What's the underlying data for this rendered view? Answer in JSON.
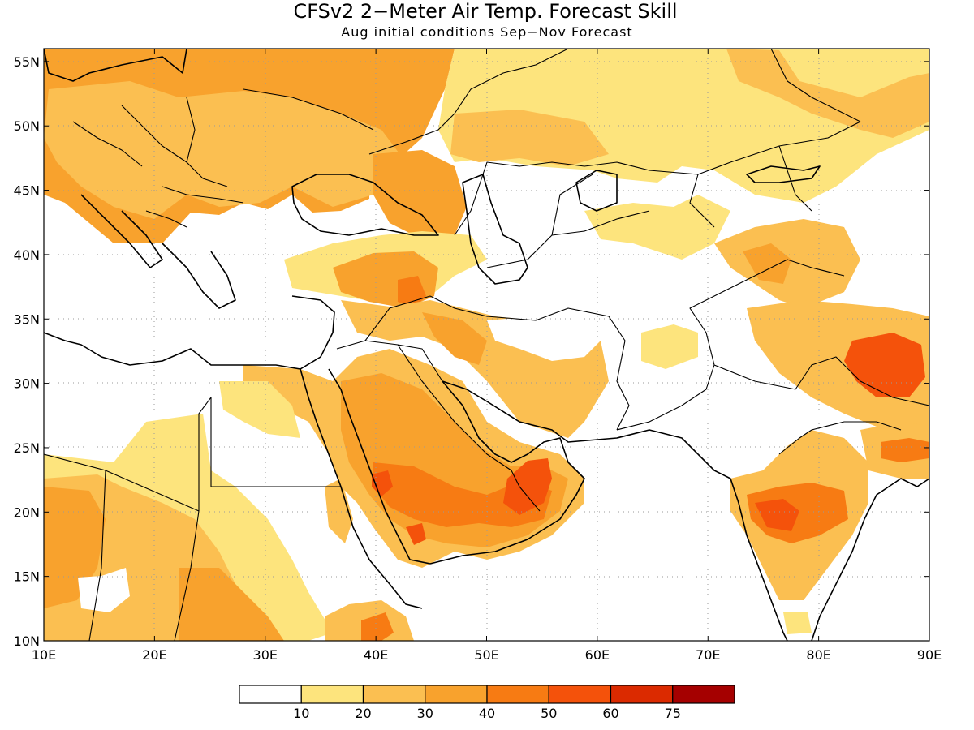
{
  "title": "CFSv2 2−Meter Air Temp. Forecast Skill",
  "subtitle": "Aug initial conditions  Sep−Nov Forecast",
  "colors": {
    "c0": "#ffffff",
    "c10": "#fde47d",
    "c20": "#fbbf51",
    "c30": "#f8a22d",
    "c40": "#f77b13",
    "c50": "#f4520b",
    "c60": "#db2a00",
    "c75": "#a50000"
  },
  "chart_data": {
    "type": "heatmap",
    "lon_range": [
      10,
      90
    ],
    "lat_range": [
      10,
      56
    ],
    "x_ticks": [
      "10E",
      "20E",
      "30E",
      "40E",
      "50E",
      "60E",
      "70E",
      "80E",
      "90E"
    ],
    "y_ticks": [
      "10N",
      "15N",
      "20N",
      "25N",
      "30N",
      "35N",
      "40N",
      "45N",
      "50N",
      "55N"
    ],
    "colorbar": {
      "labels": [
        "10",
        "20",
        "30",
        "40",
        "50",
        "60",
        "75"
      ]
    },
    "grid": true
  }
}
